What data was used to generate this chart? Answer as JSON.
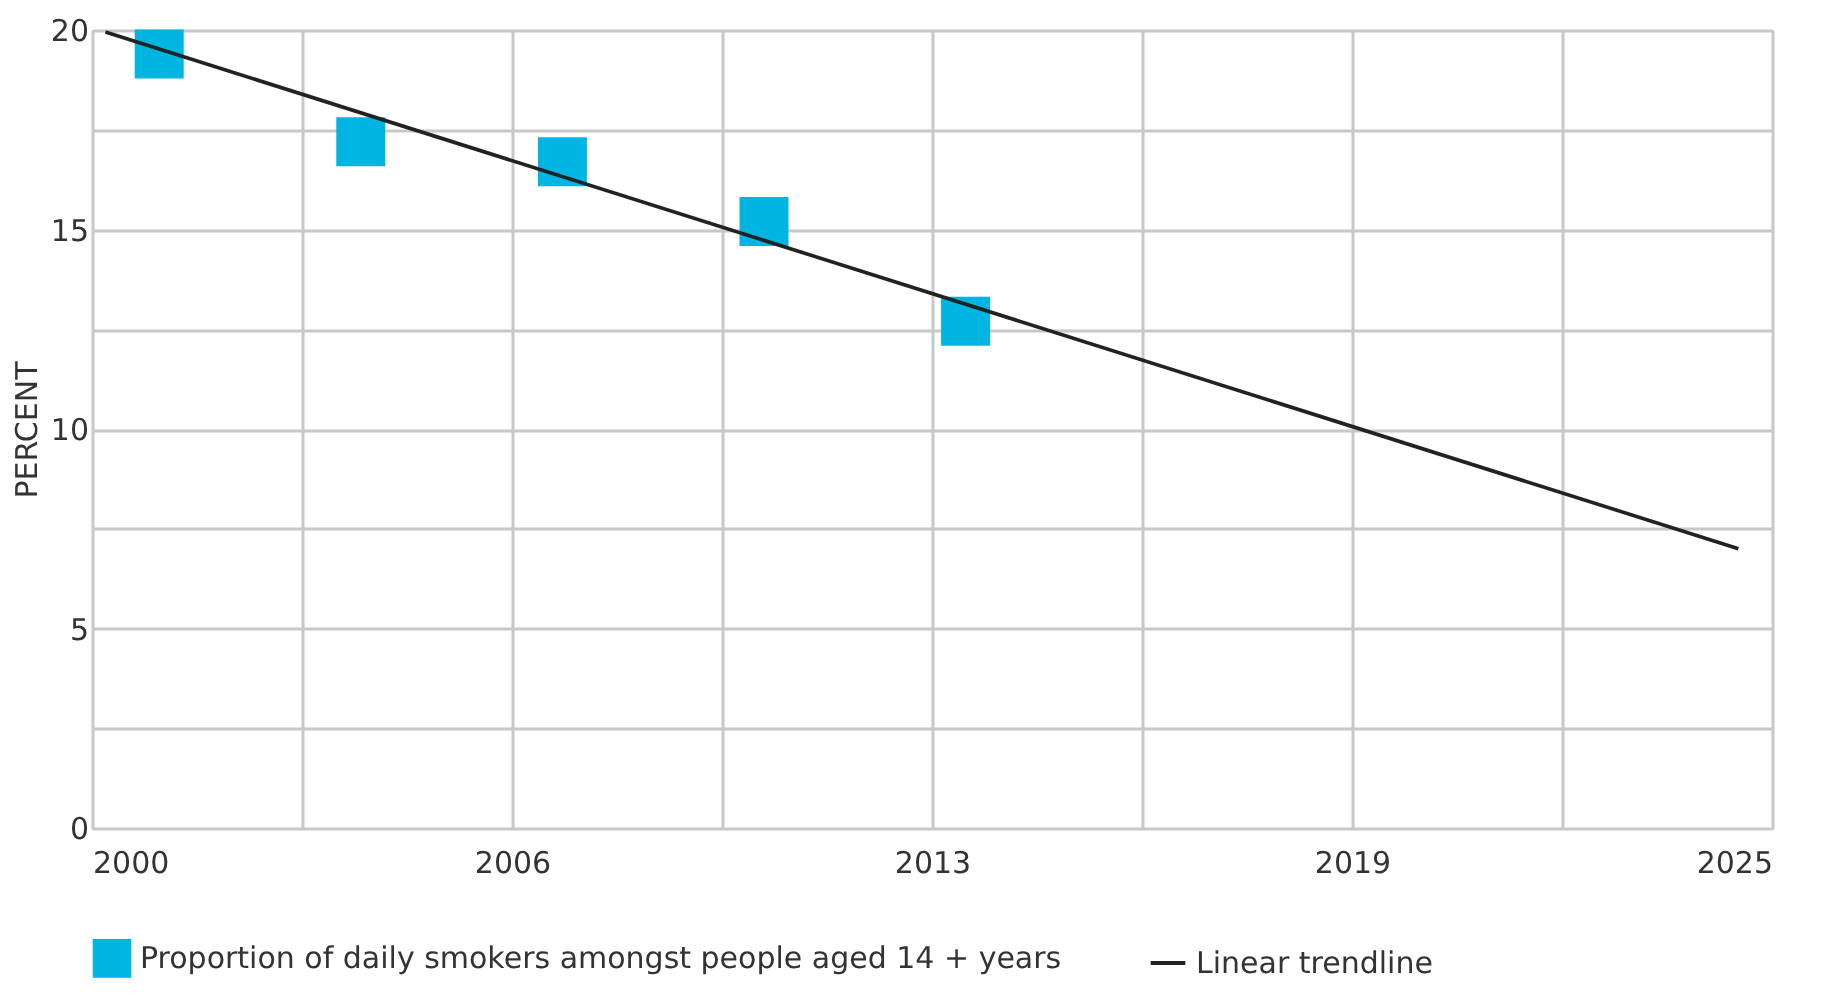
{
  "chart_data": {
    "type": "scatter",
    "ylabel": "PERCENT",
    "series": [
      {
        "name": "Proportion of daily smokers amongst people aged 14 + years",
        "color": "#00b5e2",
        "marker": "square",
        "x": [
          2001,
          2004,
          2007,
          2010,
          2013
        ],
        "values": [
          19.4,
          17.2,
          16.7,
          15.2,
          12.7
        ]
      },
      {
        "name": "Linear trendline",
        "type": "line",
        "color": "#222222",
        "marker": "none",
        "line_style": "solid",
        "x": [
          2000.2,
          2024.5
        ],
        "values": [
          19.95,
          7.0
        ]
      }
    ],
    "xlim": [
      2000,
      2025
    ],
    "xticks": [
      2000,
      {
        "value": 2003.125,
        "label": null
      },
      {
        "value": 2006.25,
        "label": "2006"
      },
      {
        "value": 2009.375,
        "label": null
      },
      {
        "value": 2012.5,
        "label": "2013"
      },
      {
        "value": 2015.625,
        "label": null
      },
      {
        "value": 2018.75,
        "label": "2019"
      },
      {
        "value": 2021.875,
        "label": null
      },
      2025
    ],
    "ylim": [
      0,
      20
    ],
    "yticks": [
      0,
      {
        "value": 2.5,
        "label": null
      },
      5,
      {
        "value": 7.5,
        "label": null
      },
      10,
      {
        "value": 12.5,
        "label": null
      },
      15,
      {
        "value": 17.5,
        "label": null
      },
      20
    ],
    "grid": true,
    "legend": "bottom"
  }
}
